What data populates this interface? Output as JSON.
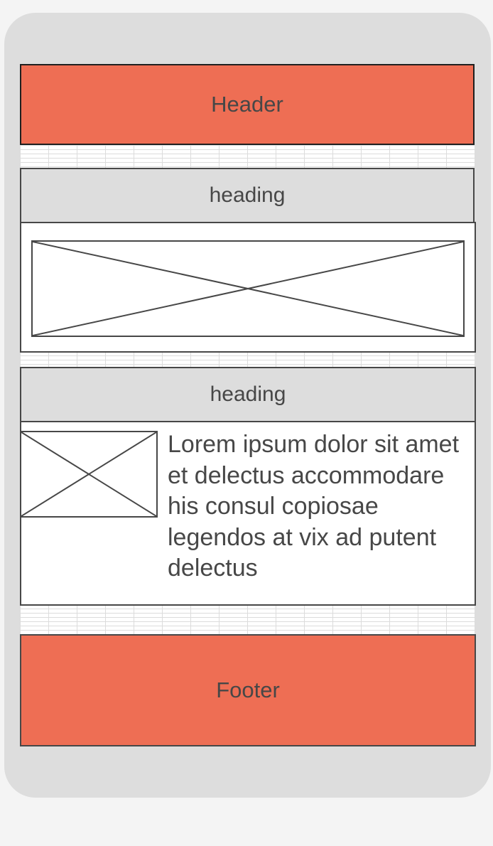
{
  "colors": {
    "accent": "#ee6e54",
    "device_frame": "#dddddd",
    "stroke": "#474747",
    "text": "#474747"
  },
  "header": {
    "label": "Header"
  },
  "section_1": {
    "heading": "heading",
    "image_icon": "image-placeholder-icon"
  },
  "section_2": {
    "heading": "heading",
    "image_icon": "image-placeholder-icon",
    "body": "Lorem ipsum dolor sit amet et delectus accommodare his consul copiosae legendos at vix ad putent delectus"
  },
  "footer": {
    "label": "Footer"
  }
}
